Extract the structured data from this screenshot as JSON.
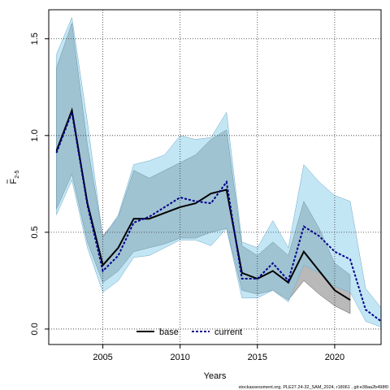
{
  "chart_data": {
    "type": "line",
    "xlabel": "Years",
    "ylabel": "F",
    "ylabel_subscript": "2-5",
    "xlim": [
      2001.5,
      2023
    ],
    "ylim": [
      -0.08,
      1.65
    ],
    "xticks": [
      2005,
      2010,
      2015,
      2020
    ],
    "yticks": [
      0.0,
      0.5,
      1.0,
      1.5
    ],
    "ytick_labels": [
      "0.0",
      "0.5",
      "1.0",
      "1.5"
    ],
    "grid": true,
    "legend_placement": "bottom-center",
    "footnote": "stockassessment.org, PLE27.24-32_SAM_2024, r18061 , git:e38aa2b498f0",
    "series": [
      {
        "name": "base",
        "color": "#000000",
        "band_color": "#808080",
        "dash": false,
        "x": [
          2002,
          2003,
          2004,
          2005,
          2006,
          2007,
          2008,
          2009,
          2010,
          2011,
          2012,
          2013,
          2014,
          2015,
          2016,
          2017,
          2018,
          2019,
          2020,
          2021
        ],
        "y": [
          0.92,
          1.13,
          0.65,
          0.33,
          0.42,
          0.57,
          0.57,
          0.6,
          0.63,
          0.65,
          0.7,
          0.72,
          0.29,
          0.26,
          0.3,
          0.24,
          0.4,
          0.3,
          0.2,
          0.15
        ],
        "lower": [
          0.62,
          0.8,
          0.45,
          0.24,
          0.3,
          0.4,
          0.42,
          0.44,
          0.47,
          0.47,
          0.5,
          0.52,
          0.2,
          0.18,
          0.2,
          0.15,
          0.25,
          0.18,
          0.12,
          0.08
        ],
        "upper": [
          1.35,
          1.58,
          0.95,
          0.48,
          0.58,
          0.82,
          0.78,
          0.82,
          0.86,
          0.9,
          0.98,
          1.03,
          0.43,
          0.38,
          0.45,
          0.38,
          0.66,
          0.52,
          0.34,
          0.28
        ]
      },
      {
        "name": "current",
        "color": "#00008b",
        "band_color": "#87ceeb",
        "dash": true,
        "x": [
          2002,
          2003,
          2004,
          2005,
          2006,
          2007,
          2008,
          2009,
          2010,
          2011,
          2012,
          2013,
          2014,
          2015,
          2016,
          2017,
          2018,
          2019,
          2020,
          2021,
          2022,
          2023
        ],
        "y": [
          0.91,
          1.12,
          0.64,
          0.3,
          0.38,
          0.55,
          0.58,
          0.63,
          0.68,
          0.66,
          0.65,
          0.76,
          0.26,
          0.26,
          0.34,
          0.25,
          0.53,
          0.48,
          0.4,
          0.36,
          0.1,
          0.04
        ],
        "lower": [
          0.59,
          0.77,
          0.42,
          0.19,
          0.25,
          0.37,
          0.38,
          0.42,
          0.46,
          0.46,
          0.43,
          0.52,
          0.16,
          0.16,
          0.2,
          0.14,
          0.33,
          0.29,
          0.22,
          0.19,
          0.04,
          0.01
        ],
        "upper": [
          1.42,
          1.61,
          1.07,
          0.47,
          0.59,
          0.85,
          0.87,
          0.9,
          1.0,
          0.98,
          0.99,
          1.12,
          0.45,
          0.42,
          0.56,
          0.42,
          0.85,
          0.76,
          0.69,
          0.66,
          0.21,
          0.11
        ]
      }
    ]
  }
}
